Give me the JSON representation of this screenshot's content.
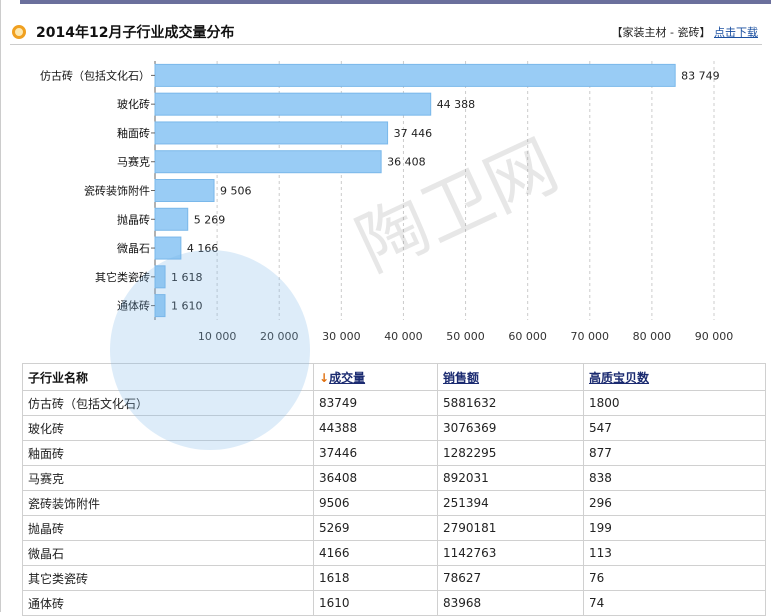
{
  "header": {
    "title": "2014年12月子行业成交量分布",
    "category": "【家装主材 - 瓷砖】",
    "download_link": "点击下载"
  },
  "watermark": {
    "text": "陶卫网",
    "url": "www.com.cn"
  },
  "colors": {
    "bar": "#99ccf5",
    "bar_border": "#7ab8ea",
    "header_bar": "#6b6f9c"
  },
  "chart_data": {
    "type": "bar",
    "orientation": "horizontal",
    "categories": [
      "仿古砖（包括文化石）",
      "玻化砖",
      "釉面砖",
      "马赛克",
      "瓷砖装饰附件",
      "抛晶砖",
      "微晶石",
      "其它类瓷砖",
      "通体砖"
    ],
    "values": [
      83749,
      44388,
      37446,
      36408,
      9506,
      5269,
      4166,
      1618,
      1610
    ],
    "data_labels": [
      "83 749",
      "44 388",
      "37 446",
      "36 408",
      "9 506",
      "5 269",
      "4 166",
      "1 618",
      "1 610"
    ],
    "xlim": [
      0,
      90000
    ],
    "xticks": [
      10000,
      20000,
      30000,
      40000,
      50000,
      60000,
      70000,
      80000,
      90000
    ],
    "xtick_labels": [
      "10 000",
      "20 000",
      "30 000",
      "40 000",
      "50 000",
      "60 000",
      "70 000",
      "80 000",
      "90 000"
    ],
    "grid": true
  },
  "table": {
    "headers": [
      "子行业名称",
      "成交量",
      "销售额",
      "高质宝贝数"
    ],
    "sort_icon": "down-arrow-icon",
    "rows": [
      [
        "仿古砖（包括文化石）",
        "83749",
        "5881632",
        "1800"
      ],
      [
        "玻化砖",
        "44388",
        "3076369",
        "547"
      ],
      [
        "釉面砖",
        "37446",
        "1282295",
        "877"
      ],
      [
        "马赛克",
        "36408",
        "892031",
        "838"
      ],
      [
        "瓷砖装饰附件",
        "9506",
        "251394",
        "296"
      ],
      [
        "抛晶砖",
        "5269",
        "2790181",
        "199"
      ],
      [
        "微晶石",
        "4166",
        "1142763",
        "113"
      ],
      [
        "其它类瓷砖",
        "1618",
        "78627",
        "76"
      ],
      [
        "通体砖",
        "1610",
        "83968",
        "74"
      ]
    ]
  }
}
